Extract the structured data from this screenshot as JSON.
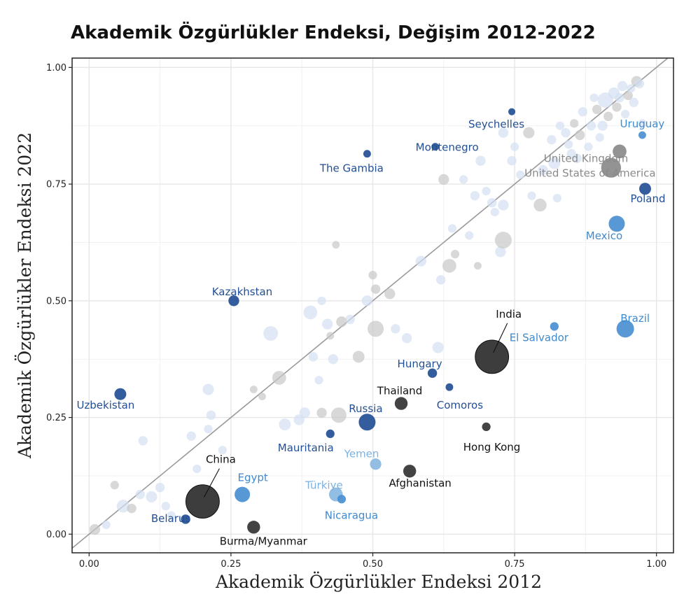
{
  "chart_data": {
    "type": "scatter",
    "title": "Akademik Özgürlükler Endeksi, Değişim 2012-2022",
    "xlabel": "Akademik Özgürlükler Endeksi 2012",
    "ylabel": "Akademik Özgürlükler Endeksi 2022",
    "xlim": [
      -0.03,
      1.03
    ],
    "ylim": [
      -0.04,
      1.02
    ],
    "x_ticks": [
      0,
      0.25,
      0.5,
      0.75,
      1
    ],
    "x_tick_labels": [
      "0.00",
      "0.25",
      "0.50",
      "0.75",
      "1.00"
    ],
    "y_ticks": [
      0,
      0.25,
      0.5,
      0.75,
      1
    ],
    "y_tick_labels": [
      "0.00",
      "0.25",
      "0.50",
      "0.75",
      "1.00"
    ],
    "grid": true,
    "reference_line": "y = x",
    "colors": {
      "dark": "#333333",
      "navy": "#234f95",
      "blue": "#4a8fd1",
      "lightblue": "#8ab8e2",
      "gray": "#8a8a8a",
      "lightgray": "#c8c8c8",
      "paleblue": "#d3e0f1",
      "line": "#9a9a9a",
      "grid": "#e6e6e6"
    },
    "labeled_points": [
      {
        "name": "India",
        "x": 0.71,
        "y": 0.38,
        "size": 100,
        "color": "dark"
      },
      {
        "name": "China",
        "x": 0.2,
        "y": 0.07,
        "size": 100,
        "color": "dark"
      },
      {
        "name": "Thailand",
        "x": 0.55,
        "y": 0.28,
        "size": 10,
        "color": "dark"
      },
      {
        "name": "Afghanistan",
        "x": 0.565,
        "y": 0.135,
        "size": 10,
        "color": "dark"
      },
      {
        "name": "Burma/Myanmar",
        "x": 0.29,
        "y": 0.015,
        "size": 10,
        "color": "dark"
      },
      {
        "name": "Hong Kong",
        "x": 0.7,
        "y": 0.23,
        "size": 3,
        "color": "dark"
      },
      {
        "name": "Russia",
        "x": 0.49,
        "y": 0.24,
        "size": 20,
        "color": "navy"
      },
      {
        "name": "Hungary",
        "x": 0.605,
        "y": 0.345,
        "size": 4,
        "color": "navy"
      },
      {
        "name": "Comoros",
        "x": 0.635,
        "y": 0.315,
        "size": 2,
        "color": "navy"
      },
      {
        "name": "Mauritania",
        "x": 0.425,
        "y": 0.215,
        "size": 3,
        "color": "navy"
      },
      {
        "name": "Kazakhstan",
        "x": 0.255,
        "y": 0.5,
        "size": 6,
        "color": "navy"
      },
      {
        "name": "Uzbekistan",
        "x": 0.055,
        "y": 0.3,
        "size": 8,
        "color": "navy"
      },
      {
        "name": "Belarus",
        "x": 0.17,
        "y": 0.032,
        "size": 4,
        "color": "navy"
      },
      {
        "name": "Seychelles",
        "x": 0.745,
        "y": 0.905,
        "size": 1.5,
        "color": "navy"
      },
      {
        "name": "Montenegro",
        "x": 0.61,
        "y": 0.83,
        "size": 2,
        "color": "navy"
      },
      {
        "name": "The Gambia",
        "x": 0.49,
        "y": 0.815,
        "size": 2,
        "color": "navy"
      },
      {
        "name": "Poland",
        "x": 0.98,
        "y": 0.74,
        "size": 8,
        "color": "navy"
      },
      {
        "name": "Brazil",
        "x": 0.945,
        "y": 0.44,
        "size": 22,
        "color": "blue"
      },
      {
        "name": "Mexico",
        "x": 0.93,
        "y": 0.665,
        "size": 18,
        "color": "blue"
      },
      {
        "name": "El Salvador",
        "x": 0.82,
        "y": 0.445,
        "size": 3,
        "color": "blue"
      },
      {
        "name": "Uruguay",
        "x": 0.975,
        "y": 0.855,
        "size": 2,
        "color": "blue"
      },
      {
        "name": "Egypt",
        "x": 0.27,
        "y": 0.085,
        "size": 16,
        "color": "blue"
      },
      {
        "name": "Nicaragua",
        "x": 0.445,
        "y": 0.075,
        "size": 3,
        "color": "blue"
      },
      {
        "name": "Yemen",
        "x": 0.505,
        "y": 0.15,
        "size": 7,
        "color": "lightblue"
      },
      {
        "name": "Türkiye",
        "x": 0.435,
        "y": 0.085,
        "size": 12,
        "color": "lightblue"
      },
      {
        "name": "United Kingdom",
        "x": 0.935,
        "y": 0.82,
        "size": 12,
        "color": "gray"
      },
      {
        "name": "United States of America",
        "x": 0.92,
        "y": 0.785,
        "size": 30,
        "color": "gray"
      }
    ],
    "background_points": [
      {
        "x": 0.01,
        "y": 0.01,
        "size": 6,
        "color": "lightgray"
      },
      {
        "x": 0.03,
        "y": 0.02,
        "size": 3,
        "color": "paleblue"
      },
      {
        "x": 0.045,
        "y": 0.105,
        "size": 3,
        "color": "lightgray"
      },
      {
        "x": 0.06,
        "y": 0.06,
        "size": 10,
        "color": "paleblue"
      },
      {
        "x": 0.075,
        "y": 0.055,
        "size": 4,
        "color": "lightgray"
      },
      {
        "x": 0.09,
        "y": 0.085,
        "size": 4,
        "color": "paleblue"
      },
      {
        "x": 0.095,
        "y": 0.2,
        "size": 4,
        "color": "paleblue"
      },
      {
        "x": 0.11,
        "y": 0.08,
        "size": 7,
        "color": "paleblue"
      },
      {
        "x": 0.125,
        "y": 0.1,
        "size": 4,
        "color": "paleblue"
      },
      {
        "x": 0.135,
        "y": 0.06,
        "size": 3,
        "color": "paleblue"
      },
      {
        "x": 0.145,
        "y": 0.04,
        "size": 3,
        "color": "paleblue"
      },
      {
        "x": 0.18,
        "y": 0.21,
        "size": 4,
        "color": "paleblue"
      },
      {
        "x": 0.19,
        "y": 0.14,
        "size": 3,
        "color": "paleblue"
      },
      {
        "x": 0.21,
        "y": 0.31,
        "size": 7,
        "color": "paleblue"
      },
      {
        "x": 0.215,
        "y": 0.255,
        "size": 4,
        "color": "paleblue"
      },
      {
        "x": 0.21,
        "y": 0.225,
        "size": 3,
        "color": "paleblue"
      },
      {
        "x": 0.235,
        "y": 0.18,
        "size": 3,
        "color": "paleblue"
      },
      {
        "x": 0.29,
        "y": 0.31,
        "size": 2,
        "color": "lightgray"
      },
      {
        "x": 0.305,
        "y": 0.295,
        "size": 2,
        "color": "lightgray"
      },
      {
        "x": 0.32,
        "y": 0.43,
        "size": 14,
        "color": "paleblue"
      },
      {
        "x": 0.335,
        "y": 0.335,
        "size": 12,
        "color": "lightgray"
      },
      {
        "x": 0.345,
        "y": 0.235,
        "size": 8,
        "color": "paleblue"
      },
      {
        "x": 0.37,
        "y": 0.245,
        "size": 6,
        "color": "paleblue"
      },
      {
        "x": 0.38,
        "y": 0.26,
        "size": 6,
        "color": "paleblue"
      },
      {
        "x": 0.39,
        "y": 0.475,
        "size": 12,
        "color": "paleblue"
      },
      {
        "x": 0.395,
        "y": 0.38,
        "size": 4,
        "color": "paleblue"
      },
      {
        "x": 0.405,
        "y": 0.33,
        "size": 3,
        "color": "paleblue"
      },
      {
        "x": 0.41,
        "y": 0.5,
        "size": 3,
        "color": "paleblue"
      },
      {
        "x": 0.41,
        "y": 0.26,
        "size": 5,
        "color": "lightgray"
      },
      {
        "x": 0.42,
        "y": 0.45,
        "size": 6,
        "color": "paleblue"
      },
      {
        "x": 0.425,
        "y": 0.425,
        "size": 2,
        "color": "lightgray"
      },
      {
        "x": 0.43,
        "y": 0.375,
        "size": 5,
        "color": "paleblue"
      },
      {
        "x": 0.435,
        "y": 0.62,
        "size": 2,
        "color": "lightgray"
      },
      {
        "x": 0.44,
        "y": 0.255,
        "size": 16,
        "color": "lightgray"
      },
      {
        "x": 0.445,
        "y": 0.455,
        "size": 6,
        "color": "lightgray"
      },
      {
        "x": 0.46,
        "y": 0.46,
        "size": 4,
        "color": "paleblue"
      },
      {
        "x": 0.475,
        "y": 0.38,
        "size": 8,
        "color": "lightgray"
      },
      {
        "x": 0.49,
        "y": 0.5,
        "size": 6,
        "color": "paleblue"
      },
      {
        "x": 0.5,
        "y": 0.555,
        "size": 3,
        "color": "lightgray"
      },
      {
        "x": 0.505,
        "y": 0.44,
        "size": 18,
        "color": "lightgray"
      },
      {
        "x": 0.505,
        "y": 0.525,
        "size": 4,
        "color": "lightgray"
      },
      {
        "x": 0.53,
        "y": 0.515,
        "size": 6,
        "color": "lightgray"
      },
      {
        "x": 0.54,
        "y": 0.44,
        "size": 4,
        "color": "paleblue"
      },
      {
        "x": 0.56,
        "y": 0.42,
        "size": 5,
        "color": "paleblue"
      },
      {
        "x": 0.585,
        "y": 0.585,
        "size": 6,
        "color": "paleblue"
      },
      {
        "x": 0.615,
        "y": 0.4,
        "size": 7,
        "color": "paleblue"
      },
      {
        "x": 0.62,
        "y": 0.545,
        "size": 4,
        "color": "paleblue"
      },
      {
        "x": 0.625,
        "y": 0.76,
        "size": 6,
        "color": "lightgray"
      },
      {
        "x": 0.635,
        "y": 0.575,
        "size": 12,
        "color": "lightgray"
      },
      {
        "x": 0.64,
        "y": 0.655,
        "size": 3,
        "color": "paleblue"
      },
      {
        "x": 0.645,
        "y": 0.6,
        "size": 3,
        "color": "lightgray"
      },
      {
        "x": 0.66,
        "y": 0.76,
        "size": 3,
        "color": "paleblue"
      },
      {
        "x": 0.67,
        "y": 0.64,
        "size": 3,
        "color": "paleblue"
      },
      {
        "x": 0.68,
        "y": 0.725,
        "size": 4,
        "color": "paleblue"
      },
      {
        "x": 0.685,
        "y": 0.575,
        "size": 2,
        "color": "lightgray"
      },
      {
        "x": 0.69,
        "y": 0.8,
        "size": 5,
        "color": "paleblue"
      },
      {
        "x": 0.7,
        "y": 0.735,
        "size": 3,
        "color": "paleblue"
      },
      {
        "x": 0.71,
        "y": 0.71,
        "size": 4,
        "color": "paleblue"
      },
      {
        "x": 0.715,
        "y": 0.69,
        "size": 3,
        "color": "paleblue"
      },
      {
        "x": 0.725,
        "y": 0.605,
        "size": 6,
        "color": "paleblue"
      },
      {
        "x": 0.73,
        "y": 0.63,
        "size": 20,
        "color": "lightgray"
      },
      {
        "x": 0.73,
        "y": 0.705,
        "size": 6,
        "color": "paleblue"
      },
      {
        "x": 0.73,
        "y": 0.86,
        "size": 5,
        "color": "paleblue"
      },
      {
        "x": 0.745,
        "y": 0.8,
        "size": 4,
        "color": "paleblue"
      },
      {
        "x": 0.75,
        "y": 0.83,
        "size": 3,
        "color": "paleblue"
      },
      {
        "x": 0.76,
        "y": 0.77,
        "size": 3,
        "color": "paleblue"
      },
      {
        "x": 0.775,
        "y": 0.86,
        "size": 7,
        "color": "lightgray"
      },
      {
        "x": 0.78,
        "y": 0.725,
        "size": 3,
        "color": "paleblue"
      },
      {
        "x": 0.795,
        "y": 0.705,
        "size": 10,
        "color": "lightgray"
      },
      {
        "x": 0.8,
        "y": 0.78,
        "size": 5,
        "color": "paleblue"
      },
      {
        "x": 0.815,
        "y": 0.845,
        "size": 4,
        "color": "paleblue"
      },
      {
        "x": 0.82,
        "y": 0.795,
        "size": 8,
        "color": "paleblue"
      },
      {
        "x": 0.825,
        "y": 0.72,
        "size": 3,
        "color": "paleblue"
      },
      {
        "x": 0.83,
        "y": 0.875,
        "size": 3,
        "color": "paleblue"
      },
      {
        "x": 0.84,
        "y": 0.86,
        "size": 4,
        "color": "paleblue"
      },
      {
        "x": 0.845,
        "y": 0.835,
        "size": 3,
        "color": "paleblue"
      },
      {
        "x": 0.85,
        "y": 0.815,
        "size": 4,
        "color": "paleblue"
      },
      {
        "x": 0.855,
        "y": 0.88,
        "size": 3,
        "color": "lightgray"
      },
      {
        "x": 0.86,
        "y": 0.805,
        "size": 4,
        "color": "paleblue"
      },
      {
        "x": 0.865,
        "y": 0.855,
        "size": 5,
        "color": "lightgray"
      },
      {
        "x": 0.87,
        "y": 0.905,
        "size": 4,
        "color": "paleblue"
      },
      {
        "x": 0.88,
        "y": 0.83,
        "size": 3,
        "color": "paleblue"
      },
      {
        "x": 0.885,
        "y": 0.875,
        "size": 4,
        "color": "paleblue"
      },
      {
        "x": 0.89,
        "y": 0.935,
        "size": 3,
        "color": "paleblue"
      },
      {
        "x": 0.895,
        "y": 0.91,
        "size": 4,
        "color": "lightgray"
      },
      {
        "x": 0.9,
        "y": 0.85,
        "size": 3,
        "color": "paleblue"
      },
      {
        "x": 0.905,
        "y": 0.875,
        "size": 5,
        "color": "paleblue"
      },
      {
        "x": 0.91,
        "y": 0.93,
        "size": 16,
        "color": "paleblue"
      },
      {
        "x": 0.915,
        "y": 0.895,
        "size": 4,
        "color": "lightgray"
      },
      {
        "x": 0.925,
        "y": 0.945,
        "size": 7,
        "color": "paleblue"
      },
      {
        "x": 0.93,
        "y": 0.915,
        "size": 4,
        "color": "lightgray"
      },
      {
        "x": 0.935,
        "y": 0.935,
        "size": 4,
        "color": "paleblue"
      },
      {
        "x": 0.94,
        "y": 0.96,
        "size": 5,
        "color": "paleblue"
      },
      {
        "x": 0.945,
        "y": 0.9,
        "size": 3,
        "color": "paleblue"
      },
      {
        "x": 0.95,
        "y": 0.94,
        "size": 4,
        "color": "lightgray"
      },
      {
        "x": 0.955,
        "y": 0.955,
        "size": 3,
        "color": "paleblue"
      },
      {
        "x": 0.96,
        "y": 0.925,
        "size": 4,
        "color": "paleblue"
      },
      {
        "x": 0.965,
        "y": 0.97,
        "size": 6,
        "color": "lightgray"
      },
      {
        "x": 0.97,
        "y": 0.965,
        "size": 4,
        "color": "paleblue"
      },
      {
        "x": 0.975,
        "y": 0.88,
        "size": 3,
        "color": "paleblue"
      }
    ]
  }
}
